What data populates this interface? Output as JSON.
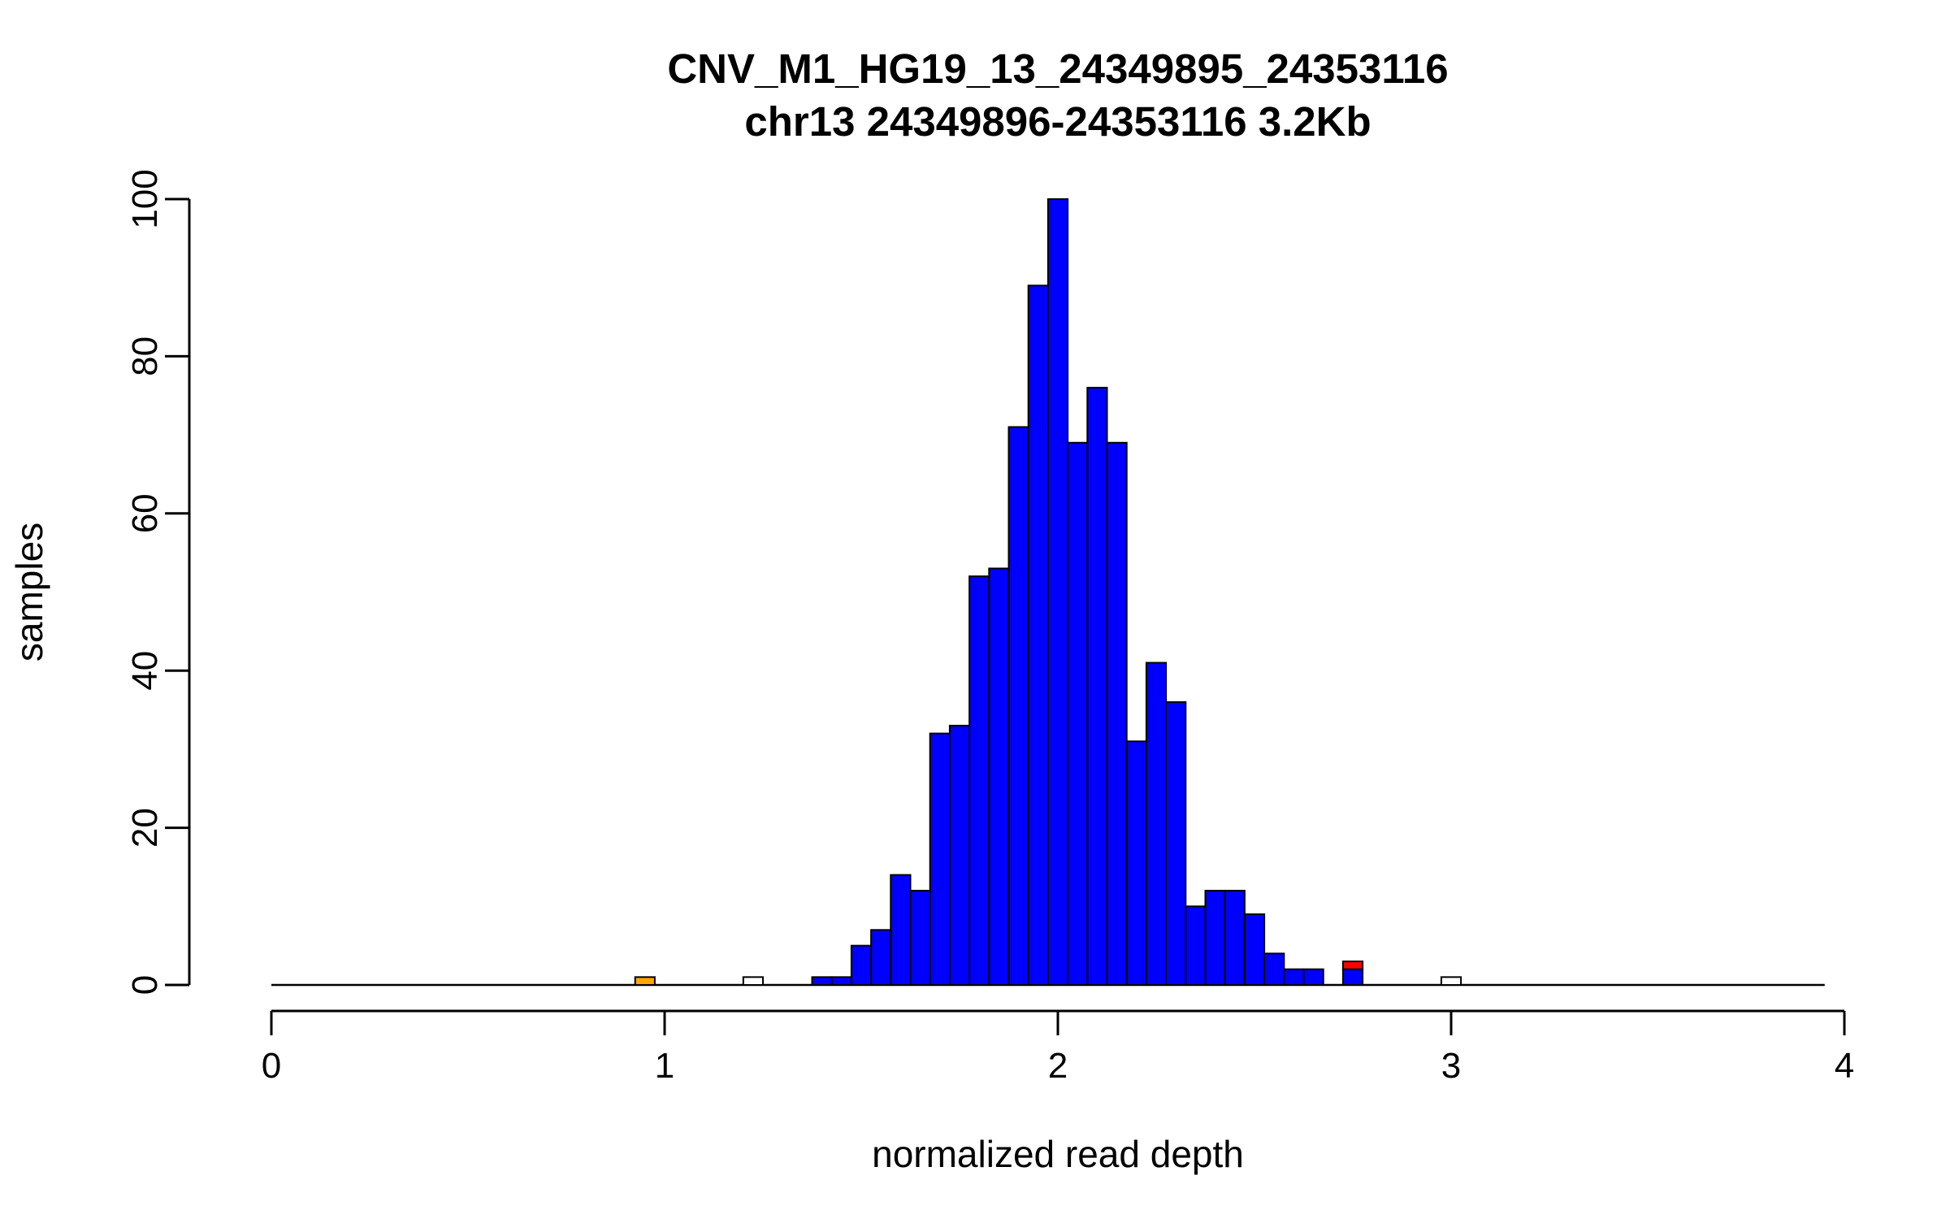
{
  "page": {
    "background_color": "#ffffff",
    "text_color": "#000000"
  },
  "chart_data": {
    "type": "bar",
    "subtype": "histogram",
    "title": "CNV_M1_HG19_13_24349895_24353116",
    "subtitle": "chr13 24349896-24353116 3.2Kb",
    "xlabel": "normalized read depth",
    "ylabel": "samples",
    "xlim": [
      0,
      4
    ],
    "ylim": [
      0,
      100
    ],
    "x_ticks": [
      0,
      1,
      2,
      3,
      4
    ],
    "y_ticks": [
      0,
      20,
      40,
      60,
      80,
      100
    ],
    "grid": false,
    "legend": "none",
    "bin_width": 0.05,
    "baseline_extent": [
      0,
      3.95
    ],
    "colors": {
      "bar_main": "#0000FF",
      "bar_outline": "#000000",
      "bar_highlight_orange": "#FFA500",
      "bar_highlight_red": "#FF0000",
      "bar_empty": "#FFFFFF",
      "axis": "#000000"
    },
    "bars": [
      {
        "x": 0.95,
        "height": 1,
        "color": "#FFA500"
      },
      {
        "x": 1.225,
        "height": 1,
        "color": "#FFFFFF"
      },
      {
        "x": 1.4,
        "height": 1,
        "color": "#0000FF"
      },
      {
        "x": 1.45,
        "height": 1,
        "color": "#0000FF"
      },
      {
        "x": 1.5,
        "height": 5,
        "color": "#0000FF"
      },
      {
        "x": 1.55,
        "height": 7,
        "color": "#0000FF"
      },
      {
        "x": 1.6,
        "height": 14,
        "color": "#0000FF"
      },
      {
        "x": 1.65,
        "height": 12,
        "color": "#0000FF"
      },
      {
        "x": 1.7,
        "height": 32,
        "color": "#0000FF"
      },
      {
        "x": 1.75,
        "height": 33,
        "color": "#0000FF"
      },
      {
        "x": 1.8,
        "height": 52,
        "color": "#0000FF"
      },
      {
        "x": 1.85,
        "height": 53,
        "color": "#0000FF"
      },
      {
        "x": 1.9,
        "height": 71,
        "color": "#0000FF"
      },
      {
        "x": 1.95,
        "height": 89,
        "color": "#0000FF"
      },
      {
        "x": 2.0,
        "height": 100,
        "color": "#0000FF"
      },
      {
        "x": 2.05,
        "height": 69,
        "color": "#0000FF"
      },
      {
        "x": 2.1,
        "height": 76,
        "color": "#0000FF"
      },
      {
        "x": 2.15,
        "height": 69,
        "color": "#0000FF"
      },
      {
        "x": 2.2,
        "height": 31,
        "color": "#0000FF"
      },
      {
        "x": 2.25,
        "height": 41,
        "color": "#0000FF"
      },
      {
        "x": 2.3,
        "height": 36,
        "color": "#0000FF"
      },
      {
        "x": 2.35,
        "height": 10,
        "color": "#0000FF"
      },
      {
        "x": 2.4,
        "height": 12,
        "color": "#0000FF"
      },
      {
        "x": 2.45,
        "height": 12,
        "color": "#0000FF"
      },
      {
        "x": 2.5,
        "height": 9,
        "color": "#0000FF"
      },
      {
        "x": 2.55,
        "height": 4,
        "color": "#0000FF"
      },
      {
        "x": 2.6,
        "height": 2,
        "color": "#0000FF"
      },
      {
        "x": 2.65,
        "height": 2,
        "color": "#0000FF"
      },
      {
        "x": 2.75,
        "height": 2,
        "color": "#0000FF"
      },
      {
        "x": 2.75,
        "height": 1,
        "base": 2,
        "color": "#FF0000"
      },
      {
        "x": 3.0,
        "height": 1,
        "color": "#FFFFFF"
      }
    ]
  }
}
